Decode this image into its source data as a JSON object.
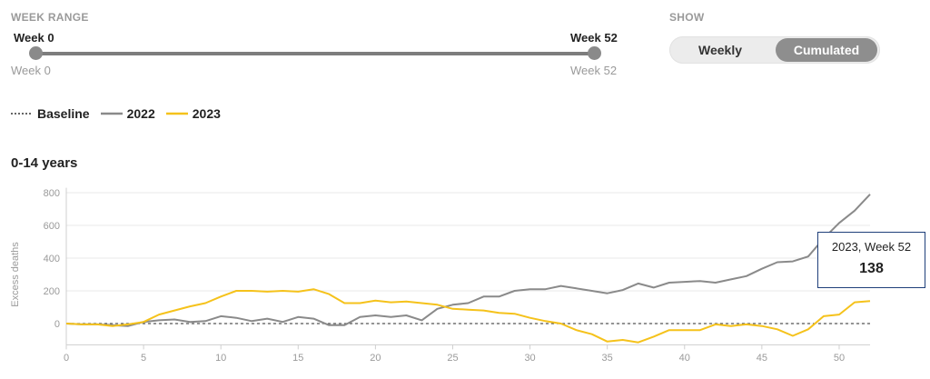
{
  "controls": {
    "week_range_label": "WEEK RANGE",
    "start_top": "Week 0",
    "end_top": "Week 52",
    "start_bottom": "Week 0",
    "end_bottom": "Week 52",
    "show_label": "SHOW",
    "weekly_label": "Weekly",
    "cumulated_label": "Cumulated",
    "selected": "Cumulated"
  },
  "legend": {
    "baseline": "Baseline",
    "s2022": "2022",
    "s2023": "2023"
  },
  "colors": {
    "s2022": "#8a8a8a",
    "s2023": "#f5c21b",
    "baseline": "#555555",
    "tooltip_border": "#1f3f7a"
  },
  "chart_title": "0-14 years",
  "tooltip": {
    "header": "2023, Week 52",
    "value": "138"
  },
  "chart_data": {
    "type": "line",
    "title": "0-14 years",
    "xlabel": "",
    "ylabel": "Excess deaths",
    "xlim": [
      0,
      52
    ],
    "ylim": [
      -130,
      830
    ],
    "x_ticks": [
      0,
      5,
      10,
      15,
      20,
      25,
      30,
      35,
      40,
      45,
      50
    ],
    "y_ticks": [
      0,
      200,
      400,
      600,
      800
    ],
    "baseline": 0,
    "x": [
      0,
      1,
      2,
      3,
      4,
      5,
      6,
      7,
      8,
      9,
      10,
      11,
      12,
      13,
      14,
      15,
      16,
      17,
      18,
      19,
      20,
      21,
      22,
      23,
      24,
      25,
      26,
      27,
      28,
      29,
      30,
      31,
      32,
      33,
      34,
      35,
      36,
      37,
      38,
      39,
      40,
      41,
      42,
      43,
      44,
      45,
      46,
      47,
      48,
      49,
      50,
      51,
      52
    ],
    "series": [
      {
        "name": "2022",
        "values": [
          0,
          -5,
          -5,
          -10,
          -15,
          10,
          20,
          25,
          10,
          15,
          45,
          35,
          15,
          30,
          10,
          40,
          30,
          -10,
          -10,
          40,
          50,
          40,
          50,
          20,
          90,
          115,
          125,
          165,
          165,
          200,
          210,
          210,
          230,
          215,
          200,
          185,
          205,
          245,
          220,
          250,
          255,
          260,
          250,
          270,
          290,
          335,
          375,
          380,
          410,
          520,
          615,
          690,
          790
        ]
      },
      {
        "name": "2023",
        "values": [
          0,
          -5,
          -5,
          -15,
          -5,
          10,
          55,
          80,
          105,
          125,
          165,
          200,
          200,
          195,
          200,
          195,
          210,
          180,
          125,
          125,
          140,
          130,
          135,
          125,
          115,
          90,
          85,
          80,
          65,
          60,
          35,
          15,
          0,
          -40,
          -65,
          -110,
          -100,
          -115,
          -80,
          -40,
          -40,
          -40,
          -5,
          -15,
          -5,
          -15,
          -35,
          -75,
          -35,
          45,
          55,
          130,
          138
        ]
      }
    ]
  }
}
